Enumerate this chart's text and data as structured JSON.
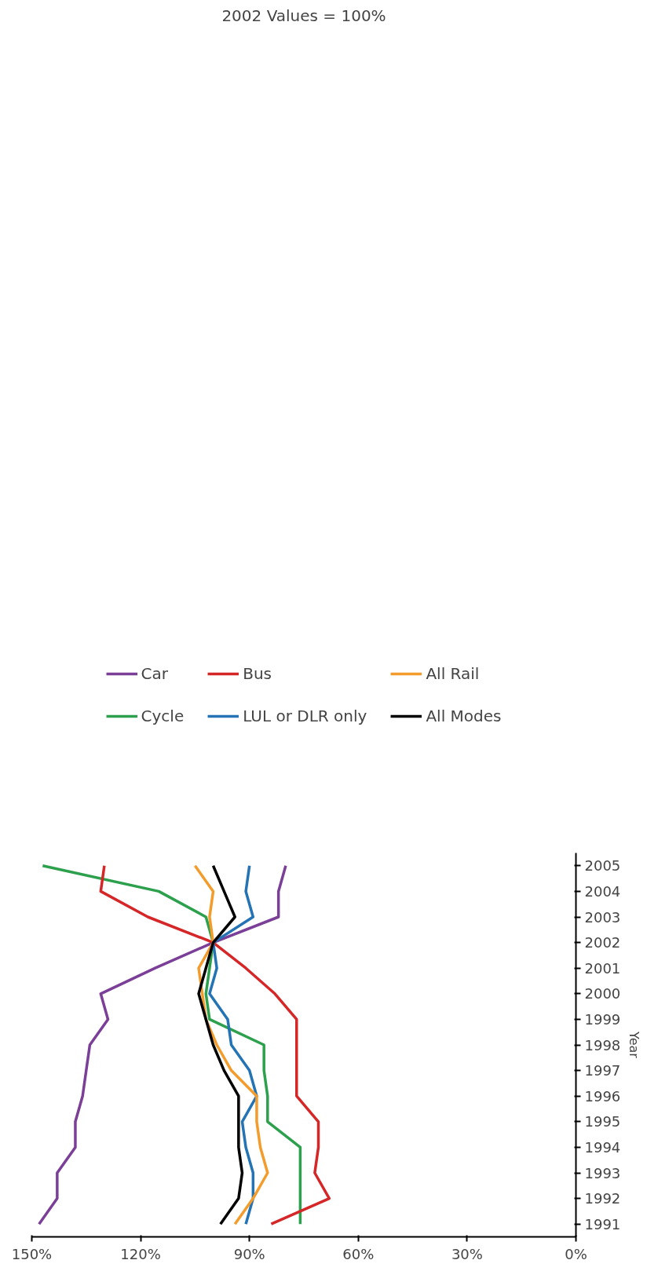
{
  "chart_data": {
    "type": "line",
    "orientation": "horizontal",
    "categories": [
      "2005",
      "2004",
      "2003",
      "2002",
      "2001",
      "2000",
      "1999",
      "1998",
      "1997",
      "1996",
      "1995",
      "1994",
      "1993",
      "1992",
      "1991"
    ],
    "ylabel": "Year",
    "annotations": [
      "2002 Values = 100%"
    ],
    "xlim": [
      150,
      0
    ],
    "xticks": [
      {
        "value": 150,
        "label": "150%"
      },
      {
        "value": 120,
        "label": "120%"
      },
      {
        "value": 90,
        "label": "90%"
      },
      {
        "value": 60,
        "label": "60%"
      },
      {
        "value": 30,
        "label": "30%"
      },
      {
        "value": 0,
        "label": "0%"
      }
    ],
    "grid": false,
    "legend": "top",
    "marker": "none",
    "line_style": "solid",
    "series": [
      {
        "name": "Car",
        "color": "#7b3f98",
        "values": [
          80,
          82,
          82,
          100,
          116,
          131,
          129,
          134,
          135,
          136,
          138,
          138,
          143,
          143,
          148
        ]
      },
      {
        "name": "Cycle",
        "color": "#2ca04c",
        "values": [
          147,
          115,
          102,
          100,
          101,
          102,
          101,
          86,
          86,
          85,
          85,
          76,
          76,
          76,
          76
        ]
      },
      {
        "name": "Bus",
        "color": "#d62728",
        "values": [
          130,
          131,
          118,
          100,
          91,
          83,
          77,
          77,
          77,
          77,
          71,
          71,
          72,
          68,
          84
        ]
      },
      {
        "name": "LUL or DLR only",
        "color": "#2474b5",
        "values": [
          90,
          91,
          89,
          100,
          99,
          101,
          96,
          95,
          90,
          88,
          92,
          91,
          89,
          89,
          91
        ]
      },
      {
        "name": "All Rail",
        "color": "#f39c2b",
        "values": [
          105,
          100,
          101,
          100,
          104,
          103,
          102,
          99,
          95,
          88,
          88,
          87,
          85,
          89,
          94
        ]
      },
      {
        "name": "All Modes",
        "color": "#000000",
        "values": [
          100,
          97,
          94,
          100,
          102,
          104,
          102,
          100,
          97,
          93,
          93,
          93,
          92,
          93,
          98
        ]
      }
    ]
  }
}
